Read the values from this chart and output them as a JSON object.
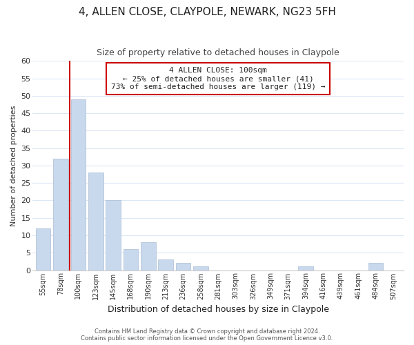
{
  "title": "4, ALLEN CLOSE, CLAYPOLE, NEWARK, NG23 5FH",
  "subtitle": "Size of property relative to detached houses in Claypole",
  "xlabel": "Distribution of detached houses by size in Claypole",
  "ylabel": "Number of detached properties",
  "bar_labels": [
    "55sqm",
    "78sqm",
    "100sqm",
    "123sqm",
    "145sqm",
    "168sqm",
    "190sqm",
    "213sqm",
    "236sqm",
    "258sqm",
    "281sqm",
    "303sqm",
    "326sqm",
    "349sqm",
    "371sqm",
    "394sqm",
    "416sqm",
    "439sqm",
    "461sqm",
    "484sqm",
    "507sqm"
  ],
  "bar_values": [
    12,
    32,
    49,
    28,
    20,
    6,
    8,
    3,
    2,
    1,
    0,
    0,
    0,
    0,
    0,
    1,
    0,
    0,
    0,
    2,
    0
  ],
  "bar_color": "#c8d9ed",
  "vline_x": 1.5,
  "vline_color": "#cc0000",
  "ylim": [
    0,
    60
  ],
  "yticks": [
    0,
    5,
    10,
    15,
    20,
    25,
    30,
    35,
    40,
    45,
    50,
    55,
    60
  ],
  "annotation_title": "4 ALLEN CLOSE: 100sqm",
  "annotation_line1": "← 25% of detached houses are smaller (41)",
  "annotation_line2": "73% of semi-detached houses are larger (119) →",
  "annotation_box_color": "#ffffff",
  "annotation_box_edge": "#cc0000",
  "footer_line1": "Contains HM Land Registry data © Crown copyright and database right 2024.",
  "footer_line2": "Contains public sector information licensed under the Open Government Licence v3.0.",
  "bg_color": "#ffffff",
  "grid_color": "#dce8f5",
  "title_fontsize": 11,
  "subtitle_fontsize": 9
}
